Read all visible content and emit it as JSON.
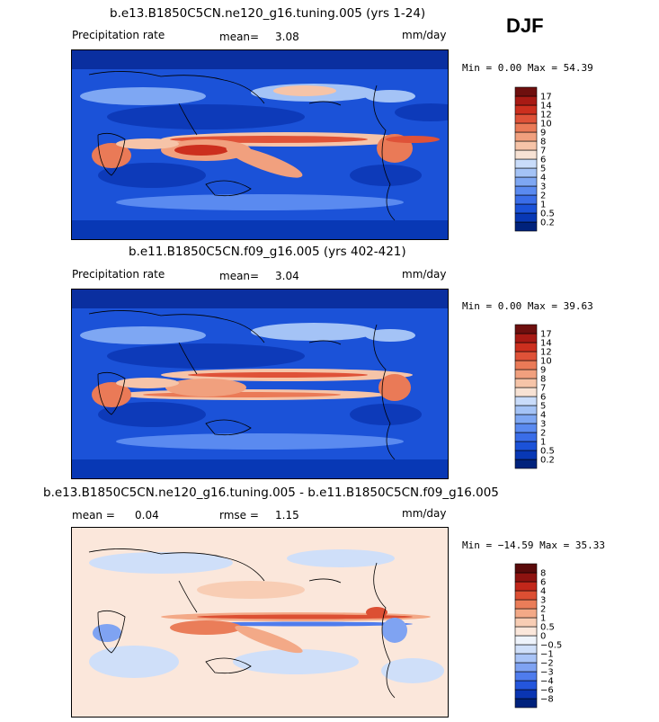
{
  "season": "DJF",
  "colors": {
    "seq": [
      "#00227c",
      "#0838b5",
      "#1b52d8",
      "#3a6de8",
      "#5a8af0",
      "#7ea7f3",
      "#a4c3f6",
      "#c9dcfa",
      "#f7e2d4",
      "#f6c4a8",
      "#f1a07e",
      "#ea7a57",
      "#df5238",
      "#cc2f1e",
      "#a81a14",
      "#6e0f0e"
    ],
    "diff": [
      "#00227c",
      "#0a35b2",
      "#2456dc",
      "#4f7ced",
      "#7fa3f2",
      "#a9c4f7",
      "#cfdff9",
      "#eef3fb",
      "#fbe7db",
      "#f8cdb4",
      "#f3a987",
      "#ea7d59",
      "#dc4f33",
      "#c2271a",
      "#8e1310",
      "#5a0a0a"
    ]
  },
  "panels": [
    {
      "title": "b.e13.B1850C5CN.ne120_g16.tuning.005 (yrs 1-24)",
      "left_label": "Precipitation rate",
      "stat1_label": "mean=",
      "stat1_value": "3.08",
      "stat2_label": "",
      "stat2_value": "",
      "units": "mm/day",
      "minmax": "Min =    0.00 Max =  54.39",
      "levels": [
        "0.2",
        "0.5",
        "1",
        "2",
        "3",
        "4",
        "5",
        "6",
        "7",
        "8",
        "9",
        "10",
        "12",
        "14",
        "17"
      ]
    },
    {
      "title": "b.e11.B1850C5CN.f09_g16.005 (yrs 402-421)",
      "left_label": "Precipitation rate",
      "stat1_label": "mean=",
      "stat1_value": "3.04",
      "stat2_label": "",
      "stat2_value": "",
      "units": "mm/day",
      "minmax": "Min =    0.00 Max =  39.63",
      "levels": [
        "0.2",
        "0.5",
        "1",
        "2",
        "3",
        "4",
        "5",
        "6",
        "7",
        "8",
        "9",
        "10",
        "12",
        "14",
        "17"
      ]
    },
    {
      "title": "b.e13.B1850C5CN.ne120_g16.tuning.005 - b.e11.B1850C5CN.f09_g16.005",
      "left_label": "",
      "stat1_label": "mean =",
      "stat1_value": "0.04",
      "stat2_label": "rmse =",
      "stat2_value": "1.15",
      "units": "mm/day",
      "minmax": "Min = −14.59 Max =  35.33",
      "levels": [
        "−8",
        "−6",
        "−4",
        "−3",
        "−2",
        "−1",
        "−0.5",
        "0",
        "0.5",
        "1",
        "2",
        "3",
        "4",
        "6",
        "8"
      ]
    }
  ]
}
